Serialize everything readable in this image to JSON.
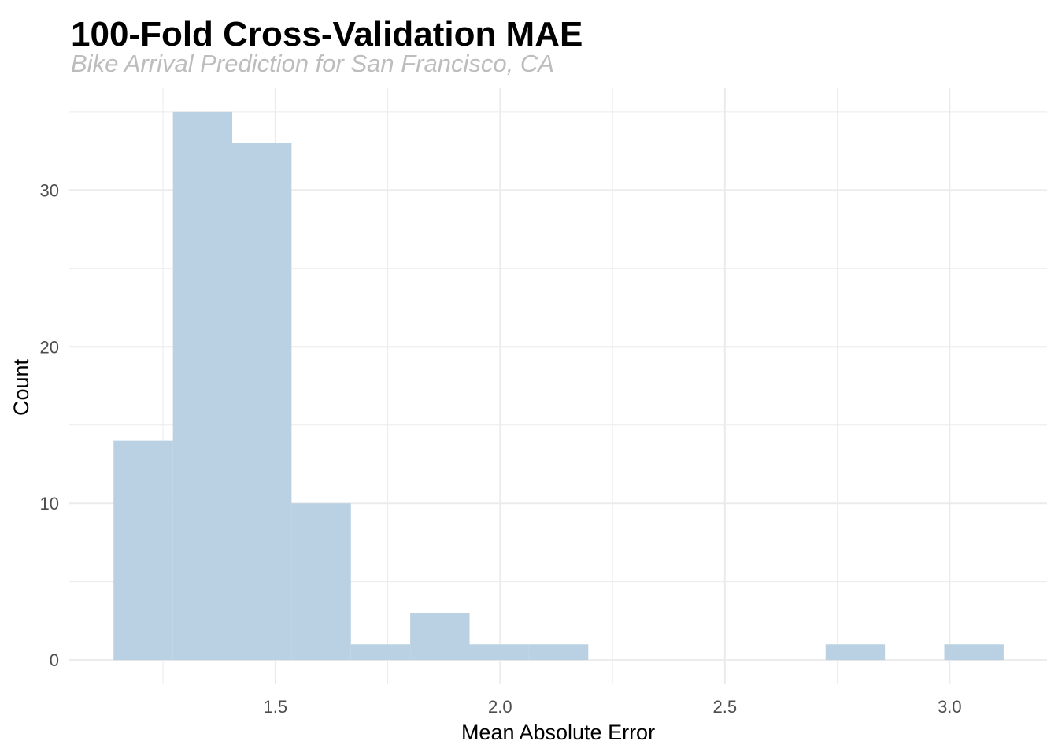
{
  "chart_data": {
    "type": "bar",
    "title": "100-Fold Cross-Validation MAE",
    "subtitle": "Bike Arrival Prediction for San Francisco, CA",
    "xlabel": "Mean Absolute Error",
    "ylabel": "Count",
    "bar_color": "#b9d1e2",
    "grid": true,
    "grid_color": "#ebebeb",
    "legend": "none",
    "xlim": [
      1.0415,
      3.2165
    ],
    "ylim": [
      -1.5,
      36.5
    ],
    "x_ticks": [
      1.5,
      2.0,
      2.5,
      3.0
    ],
    "x_tick_labels": [
      "1.5",
      "2.0",
      "2.5",
      "3.0"
    ],
    "y_ticks": [
      0,
      10,
      20,
      30
    ],
    "y_tick_labels": [
      "0",
      "10",
      "20",
      "30"
    ],
    "bins": [
      {
        "start": 1.14,
        "end": 1.272,
        "count": 14
      },
      {
        "start": 1.272,
        "end": 1.404,
        "count": 35
      },
      {
        "start": 1.404,
        "end": 1.536,
        "count": 33
      },
      {
        "start": 1.536,
        "end": 1.668,
        "count": 10
      },
      {
        "start": 1.668,
        "end": 1.8,
        "count": 1
      },
      {
        "start": 1.8,
        "end": 1.932,
        "count": 3
      },
      {
        "start": 1.932,
        "end": 2.064,
        "count": 1
      },
      {
        "start": 2.064,
        "end": 2.196,
        "count": 1
      },
      {
        "start": 2.196,
        "end": 2.328,
        "count": 0
      },
      {
        "start": 2.328,
        "end": 2.46,
        "count": 0
      },
      {
        "start": 2.46,
        "end": 2.592,
        "count": 0
      },
      {
        "start": 2.592,
        "end": 2.724,
        "count": 0
      },
      {
        "start": 2.724,
        "end": 2.856,
        "count": 1
      },
      {
        "start": 2.856,
        "end": 2.988,
        "count": 0
      },
      {
        "start": 2.988,
        "end": 3.12,
        "count": 1
      }
    ]
  }
}
